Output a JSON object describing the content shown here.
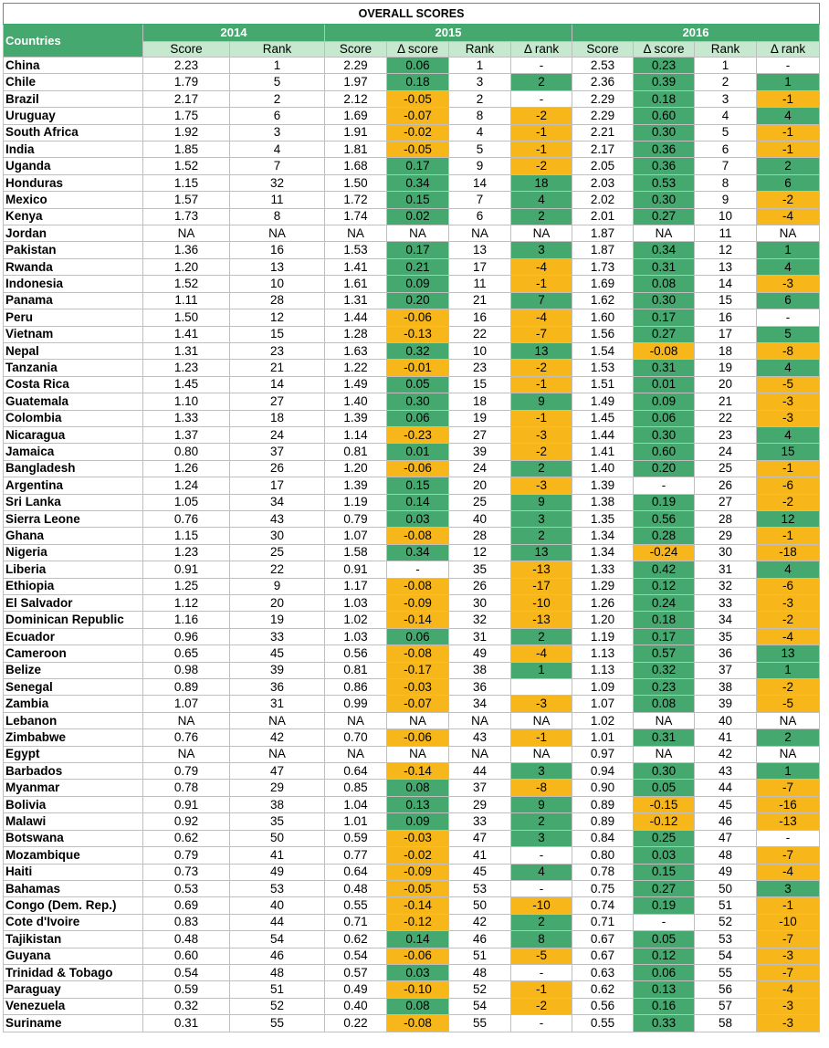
{
  "title": "OVERALL SCORES",
  "colors": {
    "positive": "#45a86e",
    "negative": "#f7b71a",
    "header": "#45a86e",
    "subheader": "#c6e8cf"
  },
  "header": {
    "countries": "Countries",
    "years": [
      "2014",
      "2015",
      "2016"
    ],
    "columns": [
      "Score",
      "Rank",
      "Score",
      "Δ score",
      "Rank",
      "Δ rank",
      "Score",
      "Δ score",
      "Rank",
      "Δ rank"
    ]
  },
  "rows": [
    {
      "country": "China",
      "s14": "2.23",
      "r14": "1",
      "s15": "2.29",
      "ds15": "0.06",
      "r15": "1",
      "dr15": "-",
      "s16": "2.53",
      "ds16": "0.23",
      "r16": "1",
      "dr16": "-"
    },
    {
      "country": "Chile",
      "s14": "1.79",
      "r14": "5",
      "s15": "1.97",
      "ds15": "0.18",
      "r15": "3",
      "dr15": "2",
      "s16": "2.36",
      "ds16": "0.39",
      "r16": "2",
      "dr16": "1"
    },
    {
      "country": "Brazil",
      "s14": "2.17",
      "r14": "2",
      "s15": "2.12",
      "ds15": "-0.05",
      "r15": "2",
      "dr15": "-",
      "s16": "2.29",
      "ds16": "0.18",
      "r16": "3",
      "dr16": "-1"
    },
    {
      "country": "Uruguay",
      "s14": "1.75",
      "r14": "6",
      "s15": "1.69",
      "ds15": "-0.07",
      "r15": "8",
      "dr15": "-2",
      "s16": "2.29",
      "ds16": "0.60",
      "r16": "4",
      "dr16": "4"
    },
    {
      "country": "South Africa",
      "s14": "1.92",
      "r14": "3",
      "s15": "1.91",
      "ds15": "-0.02",
      "r15": "4",
      "dr15": "-1",
      "s16": "2.21",
      "ds16": "0.30",
      "r16": "5",
      "dr16": "-1"
    },
    {
      "country": "India",
      "s14": "1.85",
      "r14": "4",
      "s15": "1.81",
      "ds15": "-0.05",
      "r15": "5",
      "dr15": "-1",
      "s16": "2.17",
      "ds16": "0.36",
      "r16": "6",
      "dr16": "-1"
    },
    {
      "country": "Uganda",
      "s14": "1.52",
      "r14": "7",
      "s15": "1.68",
      "ds15": "0.17",
      "r15": "9",
      "dr15": "-2",
      "s16": "2.05",
      "ds16": "0.36",
      "r16": "7",
      "dr16": "2"
    },
    {
      "country": "Honduras",
      "s14": "1.15",
      "r14": "32",
      "s15": "1.50",
      "ds15": "0.34",
      "r15": "14",
      "dr15": "18",
      "s16": "2.03",
      "ds16": "0.53",
      "r16": "8",
      "dr16": "6"
    },
    {
      "country": "Mexico",
      "s14": "1.57",
      "r14": "11",
      "s15": "1.72",
      "ds15": "0.15",
      "r15": "7",
      "dr15": "4",
      "s16": "2.02",
      "ds16": "0.30",
      "r16": "9",
      "dr16": "-2"
    },
    {
      "country": "Kenya",
      "s14": "1.73",
      "r14": "8",
      "s15": "1.74",
      "ds15": "0.02",
      "r15": "6",
      "dr15": "2",
      "s16": "2.01",
      "ds16": "0.27",
      "r16": "10",
      "dr16": "-4"
    },
    {
      "country": "Jordan",
      "s14": "NA",
      "r14": "NA",
      "s15": "NA",
      "ds15": "NA",
      "r15": "NA",
      "dr15": "NA",
      "s16": "1.87",
      "ds16": "NA",
      "r16": "11",
      "dr16": "NA"
    },
    {
      "country": "Pakistan",
      "s14": "1.36",
      "r14": "16",
      "s15": "1.53",
      "ds15": "0.17",
      "r15": "13",
      "dr15": "3",
      "s16": "1.87",
      "ds16": "0.34",
      "r16": "12",
      "dr16": "1"
    },
    {
      "country": "Rwanda",
      "s14": "1.20",
      "r14": "13",
      "s15": "1.41",
      "ds15": "0.21",
      "r15": "17",
      "dr15": "-4",
      "s16": "1.73",
      "ds16": "0.31",
      "r16": "13",
      "dr16": "4"
    },
    {
      "country": "Indonesia",
      "s14": "1.52",
      "r14": "10",
      "s15": "1.61",
      "ds15": "0.09",
      "r15": "11",
      "dr15": "-1",
      "s16": "1.69",
      "ds16": "0.08",
      "r16": "14",
      "dr16": "-3"
    },
    {
      "country": "Panama",
      "s14": "1.11",
      "r14": "28",
      "s15": "1.31",
      "ds15": "0.20",
      "r15": "21",
      "dr15": "7",
      "s16": "1.62",
      "ds16": "0.30",
      "r16": "15",
      "dr16": "6"
    },
    {
      "country": "Peru",
      "s14": "1.50",
      "r14": "12",
      "s15": "1.44",
      "ds15": "-0.06",
      "r15": "16",
      "dr15": "-4",
      "s16": "1.60",
      "ds16": "0.17",
      "r16": "16",
      "dr16": "-"
    },
    {
      "country": "Vietnam",
      "s14": "1.41",
      "r14": "15",
      "s15": "1.28",
      "ds15": "-0.13",
      "r15": "22",
      "dr15": "-7",
      "s16": "1.56",
      "ds16": "0.27",
      "r16": "17",
      "dr16": "5"
    },
    {
      "country": "Nepal",
      "s14": "1.31",
      "r14": "23",
      "s15": "1.63",
      "ds15": "0.32",
      "r15": "10",
      "dr15": "13",
      "s16": "1.54",
      "ds16": "-0.08",
      "r16": "18",
      "dr16": "-8"
    },
    {
      "country": "Tanzania",
      "s14": "1.23",
      "r14": "21",
      "s15": "1.22",
      "ds15": "-0.01",
      "r15": "23",
      "dr15": "-2",
      "s16": "1.53",
      "ds16": "0.31",
      "r16": "19",
      "dr16": "4"
    },
    {
      "country": "Costa Rica",
      "s14": "1.45",
      "r14": "14",
      "s15": "1.49",
      "ds15": "0.05",
      "r15": "15",
      "dr15": "-1",
      "s16": "1.51",
      "ds16": "0.01",
      "r16": "20",
      "dr16": "-5"
    },
    {
      "country": "Guatemala",
      "s14": "1.10",
      "r14": "27",
      "s15": "1.40",
      "ds15": "0.30",
      "r15": "18",
      "dr15": "9",
      "s16": "1.49",
      "ds16": "0.09",
      "r16": "21",
      "dr16": "-3"
    },
    {
      "country": "Colombia",
      "s14": "1.33",
      "r14": "18",
      "s15": "1.39",
      "ds15": "0.06",
      "r15": "19",
      "dr15": "-1",
      "s16": "1.45",
      "ds16": "0.06",
      "r16": "22",
      "dr16": "-3"
    },
    {
      "country": "Nicaragua",
      "s14": "1.37",
      "r14": "24",
      "s15": "1.14",
      "ds15": "-0.23",
      "r15": "27",
      "dr15": "-3",
      "s16": "1.44",
      "ds16": "0.30",
      "r16": "23",
      "dr16": "4"
    },
    {
      "country": "Jamaica",
      "s14": "0.80",
      "r14": "37",
      "s15": "0.81",
      "ds15": "0.01",
      "r15": "39",
      "dr15": "-2",
      "s16": "1.41",
      "ds16": "0.60",
      "r16": "24",
      "dr16": "15"
    },
    {
      "country": "Bangladesh",
      "s14": "1.26",
      "r14": "26",
      "s15": "1.20",
      "ds15": "-0.06",
      "r15": "24",
      "dr15": "2",
      "s16": "1.40",
      "ds16": "0.20",
      "r16": "25",
      "dr16": "-1"
    },
    {
      "country": "Argentina",
      "s14": "1.24",
      "r14": "17",
      "s15": "1.39",
      "ds15": "0.15",
      "r15": "20",
      "dr15": "-3",
      "s16": "1.39",
      "ds16": "-",
      "r16": "26",
      "dr16": "-6"
    },
    {
      "country": "Sri Lanka",
      "s14": "1.05",
      "r14": "34",
      "s15": "1.19",
      "ds15": "0.14",
      "r15": "25",
      "dr15": "9",
      "s16": "1.38",
      "ds16": "0.19",
      "r16": "27",
      "dr16": "-2"
    },
    {
      "country": "Sierra Leone",
      "s14": "0.76",
      "r14": "43",
      "s15": "0.79",
      "ds15": "0.03",
      "r15": "40",
      "dr15": "3",
      "s16": "1.35",
      "ds16": "0.56",
      "r16": "28",
      "dr16": "12"
    },
    {
      "country": "Ghana",
      "s14": "1.15",
      "r14": "30",
      "s15": "1.07",
      "ds15": "-0.08",
      "r15": "28",
      "dr15": "2",
      "s16": "1.34",
      "ds16": "0.28",
      "r16": "29",
      "dr16": "-1"
    },
    {
      "country": "Nigeria",
      "s14": "1.23",
      "r14": "25",
      "s15": "1.58",
      "ds15": "0.34",
      "r15": "12",
      "dr15": "13",
      "s16": "1.34",
      "ds16": "-0.24",
      "r16": "30",
      "dr16": "-18"
    },
    {
      "country": "Liberia",
      "s14": "0.91",
      "r14": "22",
      "s15": "0.91",
      "ds15": "-",
      "r15": "35",
      "dr15": "-13",
      "s16": "1.33",
      "ds16": "0.42",
      "r16": "31",
      "dr16": "4"
    },
    {
      "country": "Ethiopia",
      "s14": "1.25",
      "r14": "9",
      "s15": "1.17",
      "ds15": "-0.08",
      "r15": "26",
      "dr15": "-17",
      "s16": "1.29",
      "ds16": "0.12",
      "r16": "32",
      "dr16": "-6"
    },
    {
      "country": "El Salvador",
      "s14": "1.12",
      "r14": "20",
      "s15": "1.03",
      "ds15": "-0.09",
      "r15": "30",
      "dr15": "-10",
      "s16": "1.26",
      "ds16": "0.24",
      "r16": "33",
      "dr16": "-3"
    },
    {
      "country": "Dominican Republic",
      "s14": "1.16",
      "r14": "19",
      "s15": "1.02",
      "ds15": "-0.14",
      "r15": "32",
      "dr15": "-13",
      "s16": "1.20",
      "ds16": "0.18",
      "r16": "34",
      "dr16": "-2"
    },
    {
      "country": "Ecuador",
      "s14": "0.96",
      "r14": "33",
      "s15": "1.03",
      "ds15": "0.06",
      "r15": "31",
      "dr15": "2",
      "s16": "1.19",
      "ds16": "0.17",
      "r16": "35",
      "dr16": "-4"
    },
    {
      "country": "Cameroon",
      "s14": "0.65",
      "r14": "45",
      "s15": "0.56",
      "ds15": "-0.08",
      "r15": "49",
      "dr15": "-4",
      "s16": "1.13",
      "ds16": "0.57",
      "r16": "36",
      "dr16": "13"
    },
    {
      "country": "Belize",
      "s14": "0.98",
      "r14": "39",
      "s15": "0.81",
      "ds15": "-0.17",
      "r15": "38",
      "dr15": "1",
      "s16": "1.13",
      "ds16": "0.32",
      "r16": "37",
      "dr16": "1"
    },
    {
      "country": "Senegal",
      "s14": "0.89",
      "r14": "36",
      "s15": "0.86",
      "ds15": "-0.03",
      "r15": "36",
      "dr15": "",
      "s16": "1.09",
      "ds16": "0.23",
      "r16": "38",
      "dr16": "-2"
    },
    {
      "country": "Zambia",
      "s14": "1.07",
      "r14": "31",
      "s15": "0.99",
      "ds15": "-0.07",
      "r15": "34",
      "dr15": "-3",
      "s16": "1.07",
      "ds16": "0.08",
      "r16": "39",
      "dr16": "-5"
    },
    {
      "country": "Lebanon",
      "s14": "NA",
      "r14": "NA",
      "s15": "NA",
      "ds15": "NA",
      "r15": "NA",
      "dr15": "NA",
      "s16": "1.02",
      "ds16": "NA",
      "r16": "40",
      "dr16": "NA"
    },
    {
      "country": "Zimbabwe",
      "s14": "0.76",
      "r14": "42",
      "s15": "0.70",
      "ds15": "-0.06",
      "r15": "43",
      "dr15": "-1",
      "s16": "1.01",
      "ds16": "0.31",
      "r16": "41",
      "dr16": "2"
    },
    {
      "country": "Egypt",
      "s14": "NA",
      "r14": "NA",
      "s15": "NA",
      "ds15": "NA",
      "r15": "NA",
      "dr15": "NA",
      "s16": "0.97",
      "ds16": "NA",
      "r16": "42",
      "dr16": "NA"
    },
    {
      "country": "Barbados",
      "s14": "0.79",
      "r14": "47",
      "s15": "0.64",
      "ds15": "-0.14",
      "r15": "44",
      "dr15": "3",
      "s16": "0.94",
      "ds16": "0.30",
      "r16": "43",
      "dr16": "1"
    },
    {
      "country": "Myanmar",
      "s14": "0.78",
      "r14": "29",
      "s15": "0.85",
      "ds15": "0.08",
      "r15": "37",
      "dr15": "-8",
      "s16": "0.90",
      "ds16": "0.05",
      "r16": "44",
      "dr16": "-7"
    },
    {
      "country": "Bolivia",
      "s14": "0.91",
      "r14": "38",
      "s15": "1.04",
      "ds15": "0.13",
      "r15": "29",
      "dr15": "9",
      "s16": "0.89",
      "ds16": "-0.15",
      "r16": "45",
      "dr16": "-16"
    },
    {
      "country": "Malawi",
      "s14": "0.92",
      "r14": "35",
      "s15": "1.01",
      "ds15": "0.09",
      "r15": "33",
      "dr15": "2",
      "s16": "0.89",
      "ds16": "-0.12",
      "r16": "46",
      "dr16": "-13"
    },
    {
      "country": "Botswana",
      "s14": "0.62",
      "r14": "50",
      "s15": "0.59",
      "ds15": "-0.03",
      "r15": "47",
      "dr15": "3",
      "s16": "0.84",
      "ds16": "0.25",
      "r16": "47",
      "dr16": "-"
    },
    {
      "country": "Mozambique",
      "s14": "0.79",
      "r14": "41",
      "s15": "0.77",
      "ds15": "-0.02",
      "r15": "41",
      "dr15": "-",
      "s16": "0.80",
      "ds16": "0.03",
      "r16": "48",
      "dr16": "-7"
    },
    {
      "country": "Haiti",
      "s14": "0.73",
      "r14": "49",
      "s15": "0.64",
      "ds15": "-0.09",
      "r15": "45",
      "dr15": "4",
      "s16": "0.78",
      "ds16": "0.15",
      "r16": "49",
      "dr16": "-4"
    },
    {
      "country": "Bahamas",
      "s14": "0.53",
      "r14": "53",
      "s15": "0.48",
      "ds15": "-0.05",
      "r15": "53",
      "dr15": "-",
      "s16": "0.75",
      "ds16": "0.27",
      "r16": "50",
      "dr16": "3"
    },
    {
      "country": "Congo (Dem. Rep.)",
      "s14": "0.69",
      "r14": "40",
      "s15": "0.55",
      "ds15": "-0.14",
      "r15": "50",
      "dr15": "-10",
      "s16": "0.74",
      "ds16": "0.19",
      "r16": "51",
      "dr16": "-1"
    },
    {
      "country": "Cote d'Ivoire",
      "s14": "0.83",
      "r14": "44",
      "s15": "0.71",
      "ds15": "-0.12",
      "r15": "42",
      "dr15": "2",
      "s16": "0.71",
      "ds16": "-",
      "r16": "52",
      "dr16": "-10"
    },
    {
      "country": "Tajikistan",
      "s14": "0.48",
      "r14": "54",
      "s15": "0.62",
      "ds15": "0.14",
      "r15": "46",
      "dr15": "8",
      "s16": "0.67",
      "ds16": "0.05",
      "r16": "53",
      "dr16": "-7"
    },
    {
      "country": "Guyana",
      "s14": "0.60",
      "r14": "46",
      "s15": "0.54",
      "ds15": "-0.06",
      "r15": "51",
      "dr15": "-5",
      "s16": "0.67",
      "ds16": "0.12",
      "r16": "54",
      "dr16": "-3"
    },
    {
      "country": "Trinidad & Tobago",
      "s14": "0.54",
      "r14": "48",
      "s15": "0.57",
      "ds15": "0.03",
      "r15": "48",
      "dr15": "-",
      "s16": "0.63",
      "ds16": "0.06",
      "r16": "55",
      "dr16": "-7"
    },
    {
      "country": "Paraguay",
      "s14": "0.59",
      "r14": "51",
      "s15": "0.49",
      "ds15": "-0.10",
      "r15": "52",
      "dr15": "-1",
      "s16": "0.62",
      "ds16": "0.13",
      "r16": "56",
      "dr16": "-4"
    },
    {
      "country": "Venezuela",
      "s14": "0.32",
      "r14": "52",
      "s15": "0.40",
      "ds15": "0.08",
      "r15": "54",
      "dr15": "-2",
      "s16": "0.56",
      "ds16": "0.16",
      "r16": "57",
      "dr16": "-3"
    },
    {
      "country": "Suriname",
      "s14": "0.31",
      "r14": "55",
      "s15": "0.22",
      "ds15": "-0.08",
      "r15": "55",
      "dr15": "-",
      "s16": "0.55",
      "ds16": "0.33",
      "r16": "58",
      "dr16": "-3"
    }
  ]
}
